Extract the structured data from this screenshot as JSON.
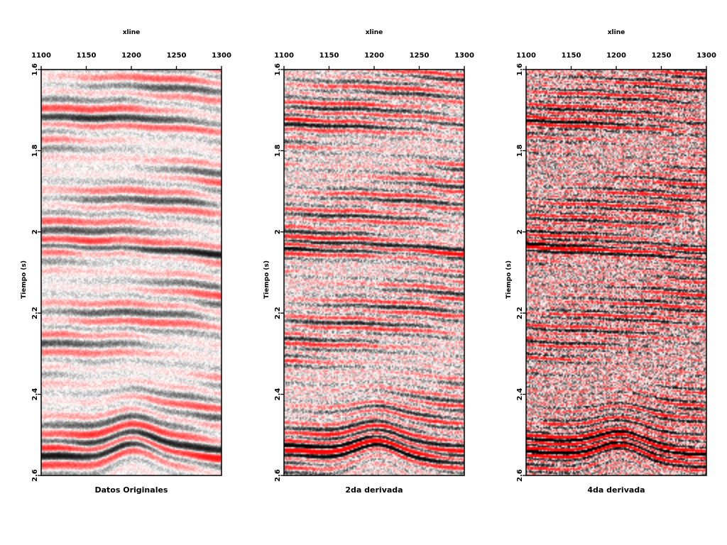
{
  "chart_data": [
    {
      "type": "heatmap",
      "title": "Datos Originales",
      "xlabel": "xline",
      "ylabel": "Tiempo (s)",
      "xlim": [
        1100,
        1300
      ],
      "ylim": [
        1.6,
        2.6
      ],
      "x_ticks": [
        "1100",
        "1150",
        "1200",
        "1250",
        "1300"
      ],
      "y_ticks": [
        "1.6",
        "1.8",
        "2",
        "2.2",
        "2.4",
        "2.6"
      ],
      "x_tick_values": [
        1100,
        1150,
        1200,
        1250,
        1300
      ],
      "y_tick_values": [
        1.6,
        1.8,
        2.0,
        2.2,
        2.4,
        2.6
      ],
      "colormap": [
        "#000000",
        "#ffffff",
        "#ff0000"
      ],
      "band_period_s": 0.04,
      "strong_horizon_time_s": 2.03,
      "anticline_crest_xline": 1205,
      "anticline_time_s": 2.53
    },
    {
      "type": "heatmap",
      "title": "2da derivada",
      "xlabel": "xline",
      "ylabel": "Tiempo (s)",
      "xlim": [
        1100,
        1300
      ],
      "ylim": [
        1.6,
        2.6
      ],
      "x_ticks": [
        "1100",
        "1150",
        "1200",
        "1250",
        "1300"
      ],
      "y_ticks": [
        "1.6",
        "1.8",
        "2",
        "2.2",
        "2.4",
        "2.6"
      ],
      "x_tick_values": [
        1100,
        1150,
        1200,
        1250,
        1300
      ],
      "y_tick_values": [
        1.6,
        1.8,
        2.0,
        2.2,
        2.4,
        2.6
      ],
      "colormap": [
        "#000000",
        "#ffffff",
        "#ff0000"
      ],
      "band_period_s": 0.022,
      "strong_horizon_time_s": 2.03,
      "anticline_crest_xline": 1205,
      "anticline_time_s": 2.53
    },
    {
      "type": "heatmap",
      "title": "4da derivada",
      "xlabel": "xline",
      "ylabel": "Tiempo (s)",
      "xlim": [
        1100,
        1300
      ],
      "ylim": [
        1.6,
        2.6
      ],
      "x_ticks": [
        "1100",
        "1150",
        "1200",
        "1250",
        "1300"
      ],
      "y_ticks": [
        "1.6",
        "1.8",
        "2",
        "2.2",
        "2.4",
        "2.6"
      ],
      "x_tick_values": [
        1100,
        1150,
        1200,
        1250,
        1300
      ],
      "y_tick_values": [
        1.6,
        1.8,
        2.0,
        2.2,
        2.4,
        2.6
      ],
      "colormap": [
        "#000000",
        "#ffffff",
        "#ff0000"
      ],
      "band_period_s": 0.016,
      "strong_horizon_time_s": 2.03,
      "anticline_crest_xline": 1205,
      "anticline_time_s": 2.53
    }
  ]
}
